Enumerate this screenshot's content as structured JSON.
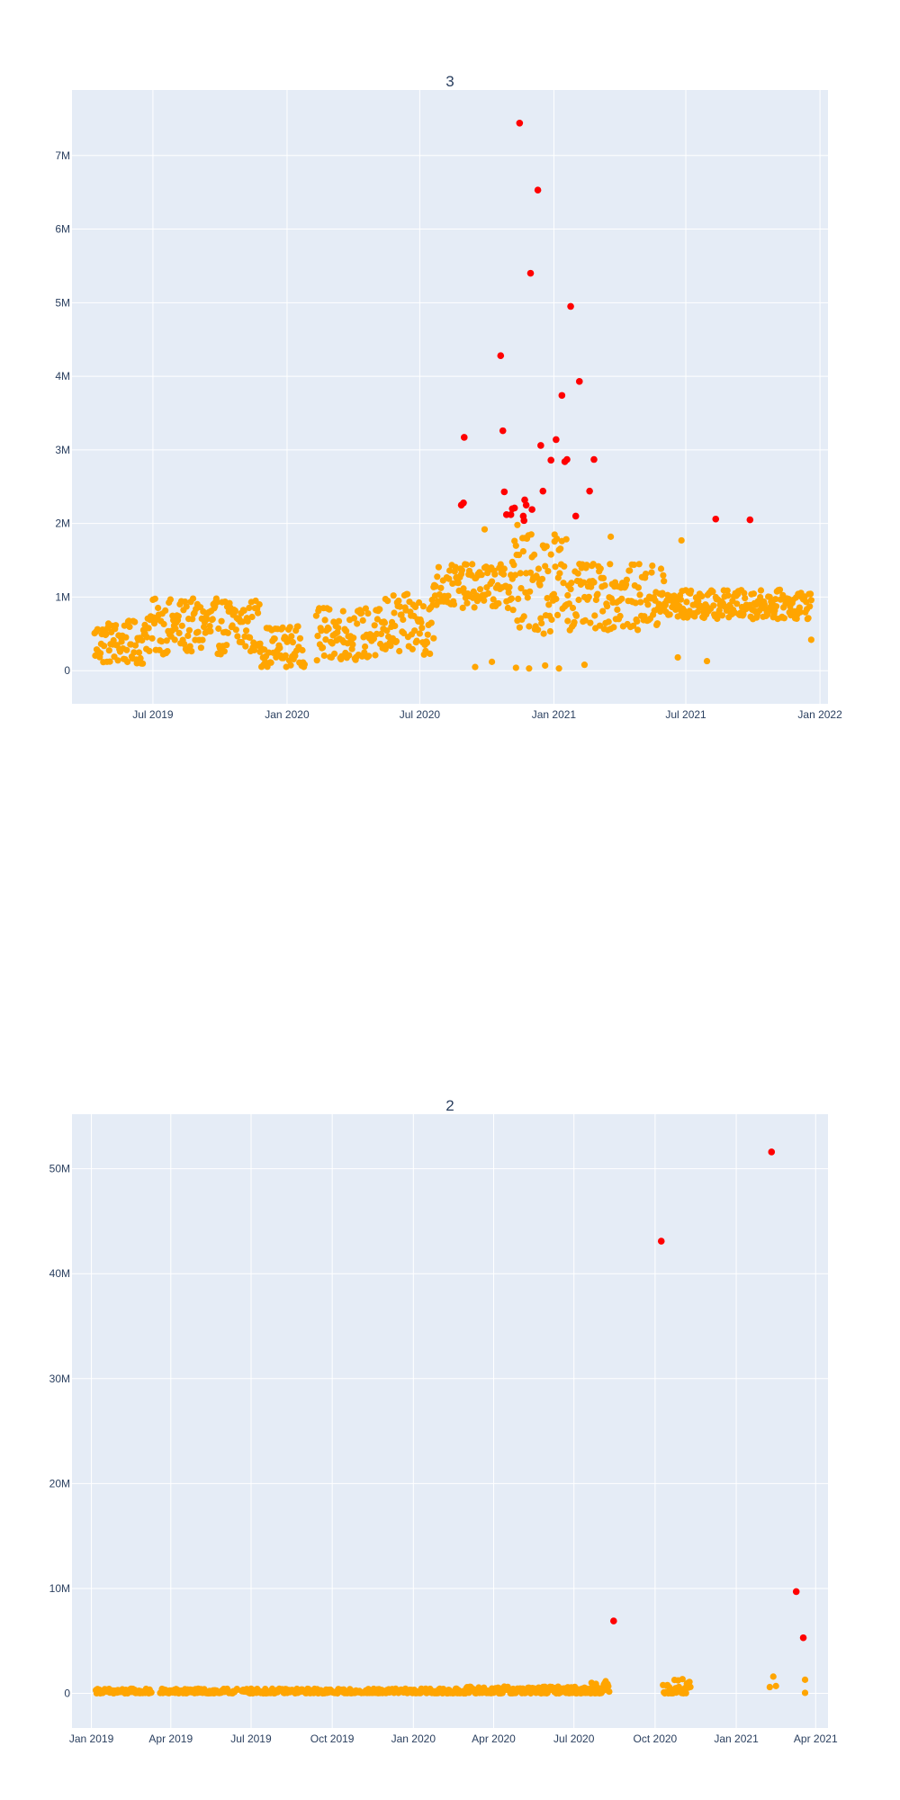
{
  "chart_data": [
    {
      "type": "scatter",
      "title": "3",
      "xlim": [
        "2019-03-12",
        "2022-01-12"
      ],
      "ylim": [
        -450000,
        7890000
      ],
      "x_ticks": [
        {
          "date": "2019-07-01",
          "label": "Jul 2019"
        },
        {
          "date": "2020-01-01",
          "label": "Jan 2020"
        },
        {
          "date": "2020-07-01",
          "label": "Jul 2020"
        },
        {
          "date": "2021-01-01",
          "label": "Jan 2021"
        },
        {
          "date": "2021-07-01",
          "label": "Jul 2021"
        },
        {
          "date": "2022-01-01",
          "label": "Jan 2022"
        }
      ],
      "y_ticks": [
        {
          "value": 0,
          "label": "0"
        },
        {
          "value": 1000000,
          "label": "1M"
        },
        {
          "value": 2000000,
          "label": "2M"
        },
        {
          "value": 3000000,
          "label": "3M"
        },
        {
          "value": 4000000,
          "label": "4M"
        },
        {
          "value": 5000000,
          "label": "5M"
        },
        {
          "value": 6000000,
          "label": "6M"
        },
        {
          "value": 7000000,
          "label": "7M"
        }
      ],
      "grid": true,
      "colors": {
        "normal": "#ffa500",
        "outlier": "#ff0000",
        "plot_bg": "#e5ecf6"
      },
      "outliers": [
        {
          "x": "2020-08-27",
          "y": 2250000
        },
        {
          "x": "2020-08-30",
          "y": 2280000
        },
        {
          "x": "2020-08-31",
          "y": 3170000
        },
        {
          "x": "2020-10-20",
          "y": 4280000
        },
        {
          "x": "2020-10-23",
          "y": 3260000
        },
        {
          "x": "2020-10-25",
          "y": 2430000
        },
        {
          "x": "2020-10-28",
          "y": 2120000
        },
        {
          "x": "2020-11-03",
          "y": 2120000
        },
        {
          "x": "2020-11-05",
          "y": 2200000
        },
        {
          "x": "2020-11-08",
          "y": 2210000
        },
        {
          "x": "2020-11-15",
          "y": 7440000
        },
        {
          "x": "2020-11-20",
          "y": 2100000
        },
        {
          "x": "2020-11-21",
          "y": 2040000
        },
        {
          "x": "2020-11-22",
          "y": 2320000
        },
        {
          "x": "2020-11-24",
          "y": 2250000
        },
        {
          "x": "2020-11-30",
          "y": 5400000
        },
        {
          "x": "2020-12-02",
          "y": 2190000
        },
        {
          "x": "2020-12-10",
          "y": 6530000
        },
        {
          "x": "2020-12-14",
          "y": 3060000
        },
        {
          "x": "2020-12-17",
          "y": 2440000
        },
        {
          "x": "2020-12-28",
          "y": 2860000
        },
        {
          "x": "2021-01-04",
          "y": 3140000
        },
        {
          "x": "2021-01-12",
          "y": 3740000
        },
        {
          "x": "2021-01-16",
          "y": 2840000
        },
        {
          "x": "2021-01-19",
          "y": 2870000
        },
        {
          "x": "2021-01-24",
          "y": 4950000
        },
        {
          "x": "2021-01-31",
          "y": 2100000
        },
        {
          "x": "2021-02-05",
          "y": 3930000
        },
        {
          "x": "2021-02-19",
          "y": 2440000
        },
        {
          "x": "2021-02-25",
          "y": 2870000
        },
        {
          "x": "2021-08-11",
          "y": 2060000
        },
        {
          "x": "2021-09-27",
          "y": 2050000
        }
      ],
      "normal_series": {
        "segments": [
          {
            "start": "2019-04-12",
            "end": "2019-06-20",
            "level": 380000,
            "spread": 300000
          },
          {
            "start": "2019-06-20",
            "end": "2019-11-25",
            "level": 600000,
            "spread": 380000
          },
          {
            "start": "2019-11-25",
            "end": "2020-01-25",
            "level": 330000,
            "spread": 280000
          },
          {
            "start": "2020-02-10",
            "end": "2020-05-15",
            "level": 500000,
            "spread": 360000
          },
          {
            "start": "2020-05-15",
            "end": "2020-07-20",
            "level": 620000,
            "spread": 420000
          },
          {
            "start": "2020-07-20",
            "end": "2020-11-05",
            "level": 1150000,
            "spread": 300000
          },
          {
            "start": "2020-11-05",
            "end": "2021-01-20",
            "level": 1200000,
            "spread": 700000
          },
          {
            "start": "2021-01-20",
            "end": "2021-06-01",
            "level": 1000000,
            "spread": 450000
          },
          {
            "start": "2021-06-01",
            "end": "2021-12-20",
            "level": 900000,
            "spread": 200000
          }
        ],
        "extra": [
          {
            "x": "2020-09-15",
            "y": 50000
          },
          {
            "x": "2020-10-08",
            "y": 120000
          },
          {
            "x": "2020-11-10",
            "y": 40000
          },
          {
            "x": "2020-11-28",
            "y": 30000
          },
          {
            "x": "2020-12-20",
            "y": 70000
          },
          {
            "x": "2021-01-08",
            "y": 30000
          },
          {
            "x": "2021-02-12",
            "y": 80000
          },
          {
            "x": "2021-06-20",
            "y": 180000
          },
          {
            "x": "2021-07-30",
            "y": 130000
          },
          {
            "x": "2021-12-20",
            "y": 420000
          },
          {
            "x": "2020-09-28",
            "y": 1920000
          },
          {
            "x": "2020-11-12",
            "y": 1980000
          },
          {
            "x": "2021-01-02",
            "y": 1850000
          },
          {
            "x": "2021-06-25",
            "y": 1770000
          },
          {
            "x": "2021-03-20",
            "y": 1820000
          }
        ]
      }
    },
    {
      "type": "scatter",
      "title": "2",
      "xlim": [
        "2018-12-10",
        "2021-04-15"
      ],
      "ylim": [
        -3300000,
        55200000
      ],
      "x_ticks": [
        {
          "date": "2019-01-01",
          "label": "Jan 2019"
        },
        {
          "date": "2019-04-01",
          "label": "Apr 2019"
        },
        {
          "date": "2019-07-01",
          "label": "Jul 2019"
        },
        {
          "date": "2019-10-01",
          "label": "Oct 2019"
        },
        {
          "date": "2020-01-01",
          "label": "Jan 2020"
        },
        {
          "date": "2020-04-01",
          "label": "Apr 2020"
        },
        {
          "date": "2020-07-01",
          "label": "Jul 2020"
        },
        {
          "date": "2020-10-01",
          "label": "Oct 2020"
        },
        {
          "date": "2021-01-01",
          "label": "Jan 2021"
        },
        {
          "date": "2021-04-01",
          "label": "Apr 2021"
        }
      ],
      "y_ticks": [
        {
          "value": 0,
          "label": "0"
        },
        {
          "value": 10000000,
          "label": "10M"
        },
        {
          "value": 20000000,
          "label": "20M"
        },
        {
          "value": 30000000,
          "label": "30M"
        },
        {
          "value": 40000000,
          "label": "40M"
        },
        {
          "value": 50000000,
          "label": "50M"
        }
      ],
      "grid": true,
      "colors": {
        "normal": "#ffa500",
        "outlier": "#ff0000",
        "plot_bg": "#e5ecf6"
      },
      "outliers": [
        {
          "x": "2020-08-15",
          "y": 6900000
        },
        {
          "x": "2020-10-08",
          "y": 43100000
        },
        {
          "x": "2021-02-10",
          "y": 51600000
        },
        {
          "x": "2021-03-10",
          "y": 9700000
        },
        {
          "x": "2021-03-18",
          "y": 5300000
        }
      ],
      "normal_series": {
        "segments": [
          {
            "start": "2019-01-06",
            "end": "2019-03-10",
            "level": 150000,
            "spread": 300000
          },
          {
            "start": "2019-03-20",
            "end": "2019-06-15",
            "level": 150000,
            "spread": 300000
          },
          {
            "start": "2019-06-20",
            "end": "2020-03-01",
            "level": 150000,
            "spread": 300000
          },
          {
            "start": "2020-03-01",
            "end": "2020-07-20",
            "level": 250000,
            "spread": 400000
          },
          {
            "start": "2020-07-20",
            "end": "2020-08-10",
            "level": 400000,
            "spread": 800000
          },
          {
            "start": "2020-10-10",
            "end": "2020-11-10",
            "level": 500000,
            "spread": 900000
          }
        ],
        "extra": [
          {
            "x": "2020-08-05",
            "y": 1000000
          },
          {
            "x": "2020-08-03",
            "y": 300000
          },
          {
            "x": "2021-02-08",
            "y": 600000
          },
          {
            "x": "2021-02-12",
            "y": 1600000
          },
          {
            "x": "2021-02-15",
            "y": 700000
          },
          {
            "x": "2021-03-20",
            "y": 1300000
          },
          {
            "x": "2021-03-20",
            "y": 50000
          }
        ]
      }
    }
  ]
}
